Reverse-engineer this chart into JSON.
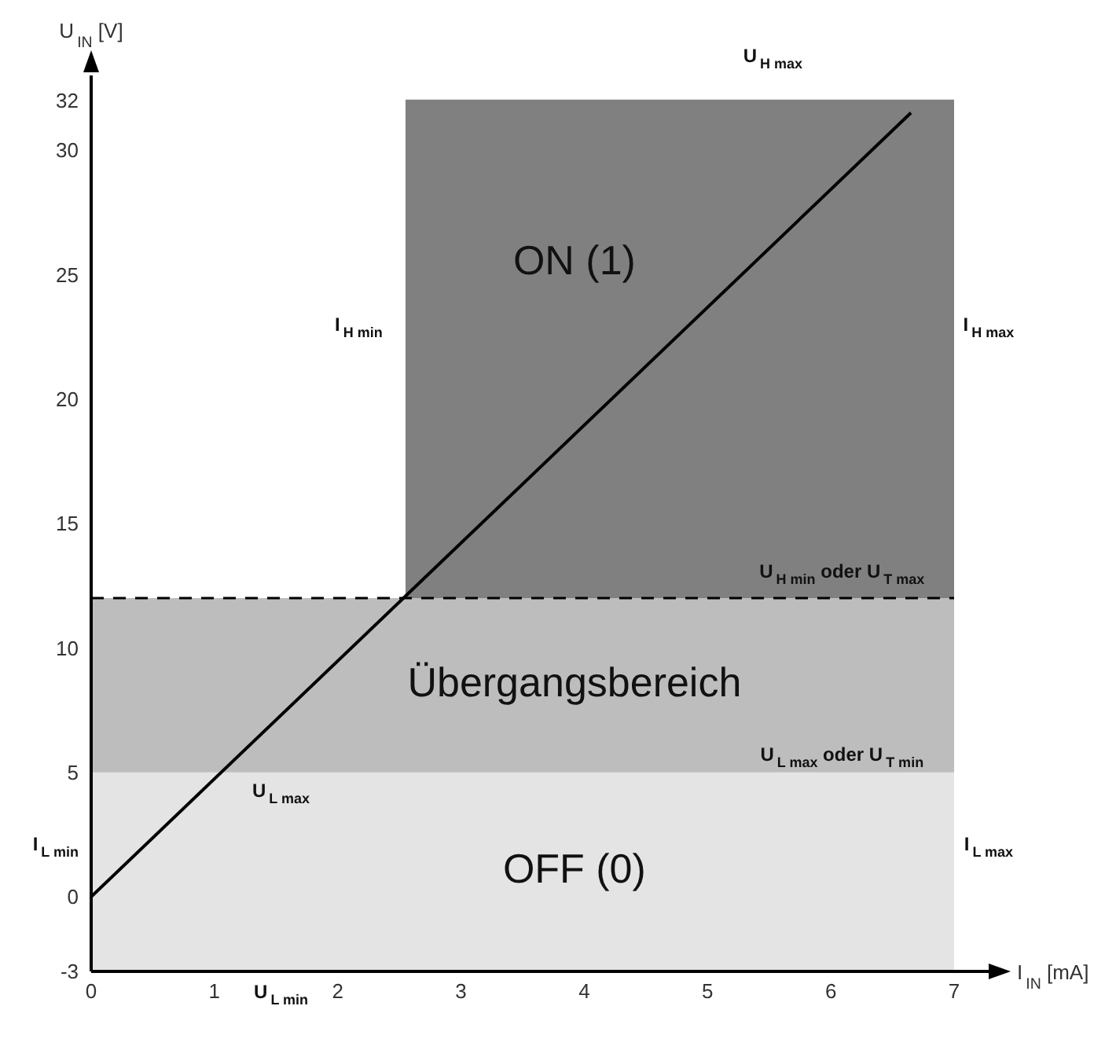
{
  "chart_data": {
    "type": "line",
    "xlabel": "I$_{IN}$ [mA]",
    "ylabel": "U$_{IN}$ [V]",
    "xlim": [
      0,
      7
    ],
    "xticks": [
      0,
      1,
      2,
      3,
      4,
      5,
      6,
      7
    ],
    "ylim": [
      -3,
      33
    ],
    "yticks": [
      -3,
      0,
      5,
      10,
      15,
      20,
      25,
      30,
      32
    ],
    "marker": "none",
    "series": [
      {
        "type": "area",
        "color": "#808080",
        "x": [
          2.55,
          7
        ],
        "values": [
          32,
          32
        ]
      },
      {
        "color": "#000000",
        "x": [
          0,
          6.65
        ],
        "values": [
          0,
          31.5
        ],
        "line_style": "solid"
      }
    ],
    "bands": [
      {
        "axis": "y",
        "from": -3,
        "to": 5,
        "label": "OFF (0)",
        "color": "#e4e4e4"
      },
      {
        "axis": "y",
        "from": 5,
        "to": 12,
        "label": "Übergangsbereich",
        "color": "#bdbdbd"
      }
    ],
    "ref_lines": [
      {
        "axis": "y",
        "value": 12,
        "color": "#000000",
        "line_style": "dashed"
      }
    ],
    "annotations": [
      "U$_{H max}$",
      "ON (1)",
      "I$_{H min}$",
      "I$_{H max}$",
      "U$_{H min}$ oder U$_{T max}$",
      "U$_{L max}$ oder U$_{T min}$",
      "U$_{L max}$",
      "I$_{L min}$",
      "I$_{L max}$",
      "U$_{L min}$"
    ]
  }
}
